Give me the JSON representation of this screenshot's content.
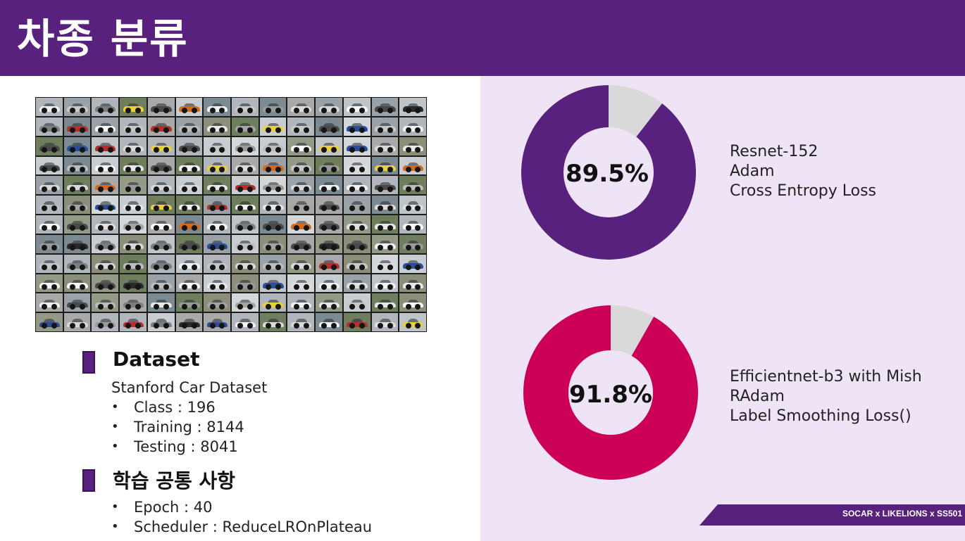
{
  "header": {
    "title": "차종 분류"
  },
  "image_grid": {
    "rows": 12,
    "cols": 14
  },
  "dataset": {
    "heading": "Dataset",
    "name": "Stanford Car Dataset",
    "items": [
      "Class : 196",
      "Training : 8144",
      "Testing : 8041"
    ]
  },
  "training": {
    "heading": "학습 공통 사항",
    "items": [
      "Epoch : 40",
      "Scheduler : ReduceLROnPlateau"
    ]
  },
  "models": [
    {
      "accuracy_label": "89.5%",
      "accuracy": 89.5,
      "color": "#58217e",
      "remainder_color": "#d9d9d9",
      "desc": [
        "Resnet-152",
        "Adam",
        "Cross Entropy Loss"
      ]
    },
    {
      "accuracy_label": "91.8%",
      "accuracy": 91.8,
      "color": "#cc0057",
      "remainder_color": "#d9d9d9",
      "desc": [
        "Efficientnet-b3 with Mish",
        "RAdam",
        "Label Smoothing Loss()"
      ]
    }
  ],
  "footer": {
    "tag": "SOCAR x LIKELIONS x SS501"
  },
  "colors": {
    "brand": "#58217e",
    "panel": "#efe4f6",
    "accent": "#cc0057"
  }
}
